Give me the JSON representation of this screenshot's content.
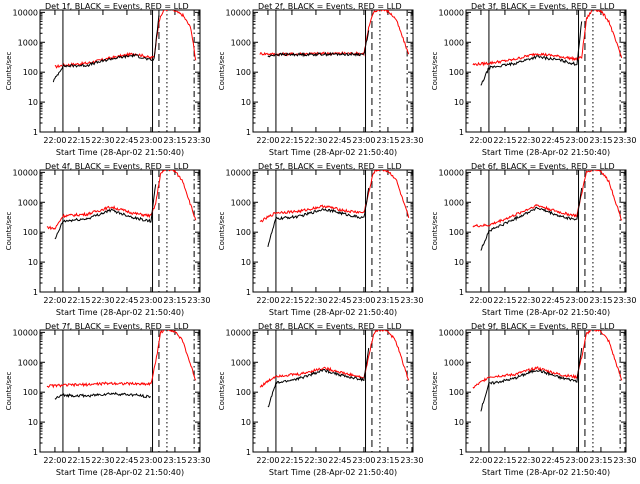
{
  "chart_data": [
    {
      "type": "line",
      "title": "Det 1f, BLACK = Events, RED = LLD",
      "xlabel": "Start Time (28-Apr-02 21:50:40)",
      "ylabel": "Counts/sec",
      "yscale": "log",
      "ylim": [
        1,
        12000
      ],
      "xlim_minutes_after_start": [
        0,
        100
      ],
      "x_tick_labels": [
        "22:00",
        "22:15",
        "22:30",
        "22:45",
        "23:00",
        "23:15",
        "23:30"
      ],
      "y_tick_labels": [
        "1",
        "10",
        "100",
        "1000",
        "10000"
      ],
      "vertical_markers": [
        {
          "style": "solid",
          "time": "22:05"
        },
        {
          "style": "solid",
          "time": "23:01"
        },
        {
          "style": "dashed",
          "time": "23:05"
        },
        {
          "style": "dotted",
          "time": "23:10"
        },
        {
          "style": "dash-dot",
          "time": "23:27"
        }
      ],
      "series": [
        {
          "name": "LLD",
          "color": "#ff0000",
          "x": [
            "22:00",
            "22:05",
            "22:20",
            "22:35",
            "22:50",
            "23:00",
            "23:02",
            "23:05",
            "23:08",
            "23:12",
            "23:15",
            "23:20",
            "23:25",
            "23:28"
          ],
          "y": [
            150,
            170,
            200,
            300,
            420,
            300,
            330,
            5000,
            12000,
            13000,
            11000,
            8000,
            3000,
            250
          ]
        },
        {
          "name": "Events",
          "color": "#000000",
          "x": [
            "21:59",
            "22:00",
            "22:05",
            "22:20",
            "22:35",
            "22:50",
            "23:00",
            "23:02",
            "23:05"
          ],
          "y": [
            50,
            60,
            160,
            170,
            280,
            370,
            250,
            270,
            8000
          ]
        }
      ]
    },
    {
      "type": "line",
      "title": "Det 2f, BLACK = Events, RED = LLD",
      "xlabel": "Start Time (28-Apr-02 21:50:40)",
      "ylabel": "Counts/sec",
      "yscale": "log",
      "ylim": [
        1,
        12000
      ],
      "xlim_minutes_after_start": [
        0,
        100
      ],
      "x_tick_labels": [
        "22:00",
        "22:15",
        "22:30",
        "22:45",
        "23:00",
        "23:15",
        "23:30"
      ],
      "y_tick_labels": [
        "1",
        "10",
        "100",
        "1000",
        "10000"
      ],
      "vertical_markers": [
        {
          "style": "solid",
          "time": "22:05"
        },
        {
          "style": "solid",
          "time": "23:01"
        },
        {
          "style": "dashed",
          "time": "23:05"
        },
        {
          "style": "dotted",
          "time": "23:10"
        },
        {
          "style": "dash-dot",
          "time": "23:27"
        }
      ],
      "series": [
        {
          "name": "LLD",
          "color": "#ff0000",
          "x": [
            "21:55",
            "22:05",
            "22:20",
            "22:35",
            "22:50",
            "23:00",
            "23:03",
            "23:06",
            "23:10",
            "23:15",
            "23:20",
            "23:28"
          ],
          "y": [
            420,
            400,
            410,
            420,
            430,
            420,
            3000,
            10000,
            13000,
            11000,
            6000,
            400
          ]
        },
        {
          "name": "Events",
          "color": "#000000",
          "x": [
            "22:00",
            "22:05",
            "22:20",
            "22:35",
            "22:50",
            "23:00",
            "23:03"
          ],
          "y": [
            330,
            390,
            390,
            400,
            400,
            390,
            2500
          ]
        }
      ]
    },
    {
      "type": "line",
      "title": "Det 3f, BLACK = Events, RED = LLD",
      "xlabel": "Start Time (28-Apr-02 21:50:40)",
      "ylabel": "Counts/sec",
      "yscale": "log",
      "ylim": [
        1,
        12000
      ],
      "xlim_minutes_after_start": [
        0,
        100
      ],
      "x_tick_labels": [
        "22:00",
        "22:15",
        "22:30",
        "22:45",
        "23:00",
        "23:15",
        "23:30"
      ],
      "y_tick_labels": [
        "1",
        "10",
        "100",
        "1000",
        "10000"
      ],
      "vertical_markers": [
        {
          "style": "solid",
          "time": "22:05"
        },
        {
          "style": "solid",
          "time": "23:01"
        },
        {
          "style": "dashed",
          "time": "23:05"
        },
        {
          "style": "dotted",
          "time": "23:10"
        },
        {
          "style": "dash-dot",
          "time": "23:27"
        }
      ],
      "series": [
        {
          "name": "LLD",
          "color": "#ff0000",
          "x": [
            "21:55",
            "22:05",
            "22:20",
            "22:35",
            "22:50",
            "23:00",
            "23:03",
            "23:06",
            "23:10",
            "23:15",
            "23:20",
            "23:28"
          ],
          "y": [
            180,
            200,
            260,
            420,
            330,
            270,
            320,
            6000,
            13000,
            11000,
            5000,
            300
          ]
        },
        {
          "name": "Events",
          "color": "#000000",
          "x": [
            "22:00",
            "22:05",
            "22:20",
            "22:35",
            "22:50",
            "23:00",
            "23:03"
          ],
          "y": [
            35,
            140,
            190,
            330,
            250,
            180,
            5000
          ]
        }
      ]
    },
    {
      "type": "line",
      "title": "Det 4f, BLACK = Events, RED = LLD",
      "xlabel": "Start Time (28-Apr-02 21:50:40)",
      "ylabel": "Counts/sec",
      "yscale": "log",
      "ylim": [
        1,
        12000
      ],
      "xlim_minutes_after_start": [
        0,
        100
      ],
      "x_tick_labels": [
        "22:00",
        "22:15",
        "22:30",
        "22:45",
        "23:00",
        "23:15",
        "23:30"
      ],
      "y_tick_labels": [
        "1",
        "10",
        "100",
        "1000",
        "10000"
      ],
      "vertical_markers": [
        {
          "style": "solid",
          "time": "22:05"
        },
        {
          "style": "solid",
          "time": "23:01"
        },
        {
          "style": "dashed",
          "time": "23:05"
        },
        {
          "style": "dotted",
          "time": "23:10"
        },
        {
          "style": "dash-dot",
          "time": "23:27"
        }
      ],
      "series": [
        {
          "name": "LLD",
          "color": "#ff0000",
          "x": [
            "21:55",
            "22:00",
            "22:05",
            "22:20",
            "22:35",
            "22:50",
            "23:00",
            "23:03",
            "23:06",
            "23:10",
            "23:15",
            "23:20",
            "23:28"
          ],
          "y": [
            150,
            130,
            350,
            400,
            700,
            420,
            350,
            900,
            9000,
            13000,
            11000,
            5000,
            250
          ]
        },
        {
          "name": "Events",
          "color": "#000000",
          "x": [
            "22:00",
            "22:05",
            "22:20",
            "22:35",
            "22:50",
            "23:00",
            "23:03"
          ],
          "y": [
            55,
            230,
            280,
            550,
            300,
            230,
            4000
          ]
        }
      ]
    },
    {
      "type": "line",
      "title": "Det 5f, BLACK = Events, RED = LLD",
      "xlabel": "Start Time (28-Apr-02 21:50:40)",
      "ylabel": "Counts/sec",
      "yscale": "log",
      "ylim": [
        1,
        12000
      ],
      "xlim_minutes_after_start": [
        0,
        100
      ],
      "x_tick_labels": [
        "22:00",
        "22:15",
        "22:30",
        "22:45",
        "23:00",
        "23:15",
        "23:30"
      ],
      "y_tick_labels": [
        "1",
        "10",
        "100",
        "1000",
        "10000"
      ],
      "vertical_markers": [
        {
          "style": "solid",
          "time": "22:05"
        },
        {
          "style": "solid",
          "time": "23:01"
        },
        {
          "style": "dashed",
          "time": "23:05"
        },
        {
          "style": "dotted",
          "time": "23:10"
        },
        {
          "style": "dash-dot",
          "time": "23:27"
        }
      ],
      "series": [
        {
          "name": "LLD",
          "color": "#ff0000",
          "x": [
            "21:55",
            "22:05",
            "22:20",
            "22:35",
            "22:50",
            "23:00",
            "23:03",
            "23:06",
            "23:10",
            "23:15",
            "23:20",
            "23:28"
          ],
          "y": [
            220,
            450,
            500,
            750,
            500,
            450,
            2000,
            10000,
            13000,
            11000,
            6000,
            300
          ]
        },
        {
          "name": "Events",
          "color": "#000000",
          "x": [
            "22:00",
            "22:05",
            "22:20",
            "22:35",
            "22:50",
            "23:00",
            "23:03"
          ],
          "y": [
            35,
            280,
            340,
            600,
            380,
            290,
            3000
          ]
        }
      ]
    },
    {
      "type": "line",
      "title": "Det 6f, BLACK = Events, RED = LLD",
      "xlabel": "Start Time (28-Apr-02 21:50:40)",
      "ylabel": "Counts/sec",
      "yscale": "log",
      "ylim": [
        1,
        12000
      ],
      "xlim_minutes_after_start": [
        0,
        100
      ],
      "x_tick_labels": [
        "22:00",
        "22:15",
        "22:30",
        "22:45",
        "23:00",
        "23:15",
        "23:30"
      ],
      "y_tick_labels": [
        "1",
        "10",
        "100",
        "1000",
        "10000"
      ],
      "vertical_markers": [
        {
          "style": "solid",
          "time": "22:05"
        },
        {
          "style": "solid",
          "time": "23:01"
        },
        {
          "style": "dashed",
          "time": "23:05"
        },
        {
          "style": "dotted",
          "time": "23:10"
        },
        {
          "style": "dash-dot",
          "time": "23:27"
        }
      ],
      "series": [
        {
          "name": "LLD",
          "color": "#ff0000",
          "x": [
            "21:55",
            "22:05",
            "22:20",
            "22:35",
            "22:50",
            "23:00",
            "23:03",
            "23:06",
            "23:10",
            "23:15",
            "23:20",
            "23:28"
          ],
          "y": [
            160,
            170,
            350,
            800,
            450,
            350,
            2000,
            10000,
            13000,
            11000,
            5000,
            250
          ]
        },
        {
          "name": "Events",
          "color": "#000000",
          "x": [
            "22:00",
            "22:05",
            "22:20",
            "22:35",
            "22:50",
            "23:00",
            "23:03"
          ],
          "y": [
            25,
            110,
            260,
            650,
            330,
            260,
            3000
          ]
        }
      ]
    },
    {
      "type": "line",
      "title": "Det 7f, BLACK = Events, RED = LLD",
      "xlabel": "Start Time (28-Apr-02 21:50:40)",
      "ylabel": "Counts/sec",
      "yscale": "log",
      "ylim": [
        1,
        12000
      ],
      "xlim_minutes_after_start": [
        0,
        100
      ],
      "x_tick_labels": [
        "22:00",
        "22:15",
        "22:30",
        "22:45",
        "23:00",
        "23:15",
        "23:30"
      ],
      "y_tick_labels": [
        "1",
        "10",
        "100",
        "1000",
        "10000"
      ],
      "vertical_markers": [
        {
          "style": "solid",
          "time": "22:05"
        },
        {
          "style": "solid",
          "time": "23:01"
        },
        {
          "style": "dashed",
          "time": "23:05"
        },
        {
          "style": "dotted",
          "time": "23:10"
        },
        {
          "style": "dash-dot",
          "time": "23:27"
        }
      ],
      "series": [
        {
          "name": "LLD",
          "color": "#ff0000",
          "x": [
            "21:55",
            "22:05",
            "22:20",
            "22:35",
            "22:50",
            "23:00",
            "23:03",
            "23:06",
            "23:10",
            "23:15",
            "23:20",
            "23:28"
          ],
          "y": [
            160,
            170,
            180,
            200,
            190,
            190,
            1000,
            10000,
            13000,
            11000,
            5000,
            250
          ]
        },
        {
          "name": "Events",
          "color": "#000000",
          "x": [
            "22:00",
            "22:05",
            "22:20",
            "22:35",
            "22:50",
            "23:00"
          ],
          "y": [
            60,
            80,
            75,
            90,
            80,
            70
          ]
        }
      ]
    },
    {
      "type": "line",
      "title": "Det 8f, BLACK = Events, RED = LLD",
      "xlabel": "Start Time (28-Apr-02 21:50:40)",
      "ylabel": "Counts/sec",
      "yscale": "log",
      "ylim": [
        1,
        12000
      ],
      "xlim_minutes_after_start": [
        0,
        100
      ],
      "x_tick_labels": [
        "22:00",
        "22:15",
        "22:30",
        "22:45",
        "23:00",
        "23:15",
        "23:30"
      ],
      "y_tick_labels": [
        "1",
        "10",
        "100",
        "1000",
        "10000"
      ],
      "vertical_markers": [
        {
          "style": "solid",
          "time": "22:05"
        },
        {
          "style": "solid",
          "time": "23:01"
        },
        {
          "style": "dashed",
          "time": "23:05"
        },
        {
          "style": "dotted",
          "time": "23:10"
        },
        {
          "style": "dash-dot",
          "time": "23:27"
        }
      ],
      "series": [
        {
          "name": "LLD",
          "color": "#ff0000",
          "x": [
            "21:55",
            "22:05",
            "22:20",
            "22:35",
            "22:50",
            "23:00",
            "23:03",
            "23:06",
            "23:10",
            "23:15",
            "23:20",
            "23:28"
          ],
          "y": [
            150,
            350,
            400,
            650,
            400,
            300,
            1500,
            9000,
            13000,
            11000,
            5000,
            250
          ]
        },
        {
          "name": "Events",
          "color": "#000000",
          "x": [
            "22:00",
            "22:05",
            "22:20",
            "22:35",
            "22:50",
            "23:00",
            "23:03"
          ],
          "y": [
            30,
            200,
            290,
            550,
            320,
            260,
            3000
          ]
        }
      ]
    },
    {
      "type": "line",
      "title": "Det 9f, BLACK = Events, RED = LLD",
      "xlabel": "Start Time (28-Apr-02 21:50:40)",
      "ylabel": "Counts/sec",
      "yscale": "log",
      "ylim": [
        1,
        12000
      ],
      "xlim_minutes_after_start": [
        0,
        100
      ],
      "x_tick_labels": [
        "22:00",
        "22:15",
        "22:30",
        "22:45",
        "23:00",
        "23:15",
        "23:30"
      ],
      "y_tick_labels": [
        "1",
        "10",
        "100",
        "1000",
        "10000"
      ],
      "vertical_markers": [
        {
          "style": "solid",
          "time": "22:05"
        },
        {
          "style": "solid",
          "time": "23:01"
        },
        {
          "style": "dashed",
          "time": "23:05"
        },
        {
          "style": "dotted",
          "time": "23:10"
        },
        {
          "style": "dash-dot",
          "time": "23:27"
        }
      ],
      "series": [
        {
          "name": "LLD",
          "color": "#ff0000",
          "x": [
            "21:55",
            "22:05",
            "22:20",
            "22:35",
            "22:50",
            "23:00",
            "23:03",
            "23:06",
            "23:10",
            "23:15",
            "23:20",
            "23:28"
          ],
          "y": [
            140,
            330,
            380,
            650,
            380,
            320,
            1500,
            9000,
            13000,
            11000,
            5000,
            250
          ]
        },
        {
          "name": "Events",
          "color": "#000000",
          "x": [
            "22:00",
            "22:05",
            "22:20",
            "22:35",
            "22:50",
            "23:00",
            "23:03"
          ],
          "y": [
            25,
            190,
            280,
            560,
            300,
            240,
            3000
          ]
        }
      ]
    }
  ]
}
